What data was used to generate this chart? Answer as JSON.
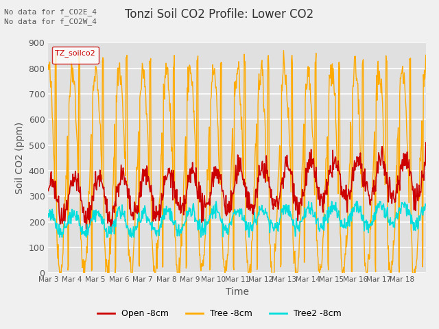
{
  "title": "Tonzi Soil CO2 Profile: Lower CO2",
  "xlabel": "Time",
  "ylabel": "Soil CO2 (ppm)",
  "ylim": [
    0,
    900
  ],
  "yticks": [
    0,
    100,
    200,
    300,
    400,
    500,
    600,
    700,
    800,
    900
  ],
  "annotation_lines": [
    "No data for f_CO2E_4",
    "No data for f_CO2W_4"
  ],
  "legend_label": "TZ_soilco2",
  "legend_entries": [
    "Open -8cm",
    "Tree -8cm",
    "Tree2 -8cm"
  ],
  "tick_labels": [
    "Mar 3",
    "Mar 4",
    "Mar 5",
    "Mar 6",
    "Mar 7",
    "Mar 8",
    "Mar 9",
    "Mar 10",
    "Mar 11",
    "Mar 12",
    "Mar 13",
    "Mar 14",
    "Mar 15",
    "Mar 16",
    "Mar 17",
    "Mar 18"
  ],
  "line_color_open": "#cc0000",
  "line_color_tree": "#ffaa00",
  "line_color_tree2": "#00dddd",
  "background_color": "#f0f0f0",
  "plot_bg_color": "#e0e0e0",
  "grid_color": "#ffffff",
  "title_fontsize": 12,
  "axis_fontsize": 10,
  "n_days": 16,
  "n_per_day": 48
}
